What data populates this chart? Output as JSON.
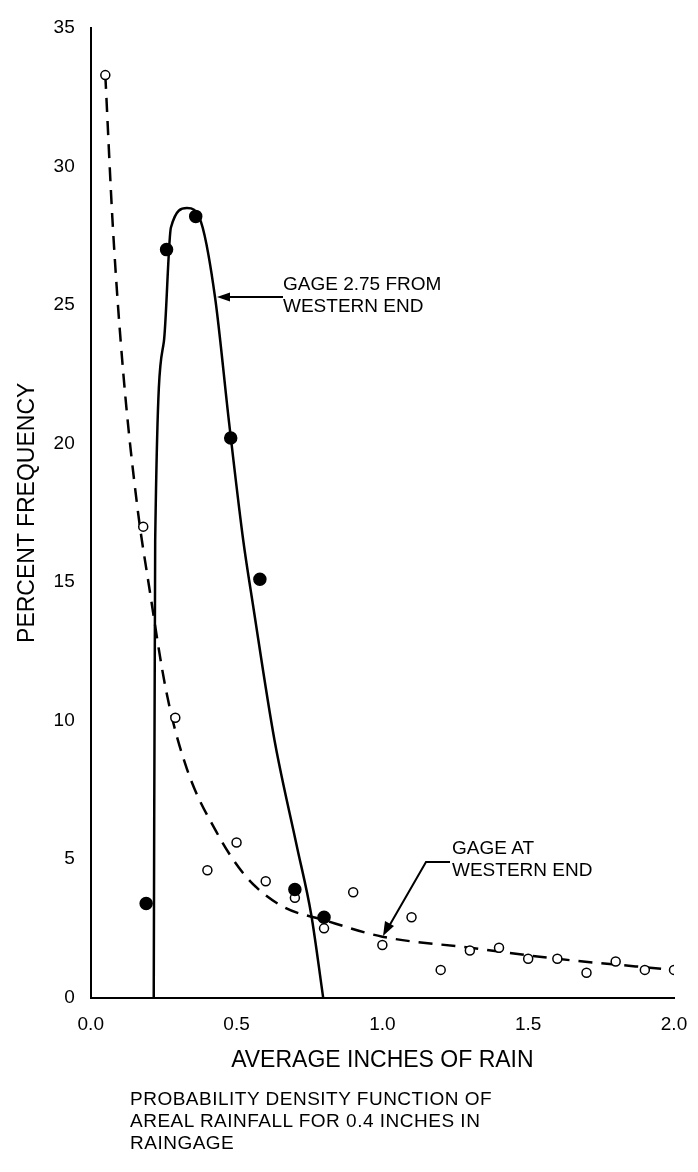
{
  "chart_data": {
    "type": "scatter",
    "xlabel": "AVERAGE INCHES OF RAIN",
    "ylabel": "PERCENT FREQUENCY",
    "xlim": [
      0,
      2
    ],
    "xticks": [
      {
        "value": 0,
        "label": "0.0"
      },
      0.5,
      {
        "value": 1,
        "label": "1.0"
      },
      1.5,
      {
        "value": 2,
        "label": "2.0"
      }
    ],
    "ylim": [
      0,
      35
    ],
    "yticks": [
      0,
      5,
      10,
      15,
      20,
      25,
      30,
      35
    ],
    "grid": false,
    "legend": false,
    "series": [
      {
        "type": "line",
        "color": "#000000",
        "marker": "none",
        "line_style": "solid",
        "x": [
          0.216,
          0.221,
          0.251,
          0.275,
          0.33,
          0.378,
          0.426,
          0.475,
          0.523,
          0.556,
          0.63,
          0.706,
          0.756,
          0.797
        ],
        "values": [
          0,
          16.5,
          23.7,
          27.8,
          28.5,
          28,
          25.3,
          20.7,
          16.5,
          14.2,
          9.3,
          5.5,
          3,
          0
        ]
      },
      {
        "type": "line",
        "color": "#000000",
        "marker": "none",
        "line_style": "dashed",
        "x": [
          0.05,
          0.076,
          0.112,
          0.16,
          0.2,
          0.26,
          0.33,
          0.43,
          0.53,
          0.656,
          0.8,
          1.0,
          1.3,
          1.6,
          2.0
        ],
        "values": [
          33.3,
          27.8,
          22.5,
          17.7,
          14.85,
          11,
          8.25,
          6,
          4.4,
          3.3,
          2.8,
          2.2,
          1.8,
          1.4,
          1
        ]
      },
      {
        "color": "#000000",
        "marker": "circle",
        "x": [
          0.19,
          0.26,
          0.36,
          0.48,
          0.58,
          0.7,
          0.8
        ],
        "values": [
          3.4,
          27,
          28.2,
          20.2,
          15.1,
          3.9,
          2.9
        ]
      },
      {
        "color": "#ffffff",
        "marker": "circle",
        "x": [
          0.05,
          0.18,
          0.29,
          0.4,
          0.5,
          0.6,
          0.7,
          0.8,
          0.9,
          1,
          1.1,
          1.2,
          1.3,
          1.4,
          1.5,
          1.6,
          1.7,
          1.8,
          1.9,
          2
        ],
        "values": [
          33.3,
          17,
          10.1,
          4.6,
          5.6,
          4.2,
          3.6,
          2.5,
          3.8,
          1.9,
          2.9,
          1,
          1.7,
          1.8,
          1.4,
          1.4,
          0.9,
          1.3,
          1,
          1
        ]
      }
    ],
    "annotations": [
      "GAGE 2.75 FROM WESTERN END",
      "GAGE AT WESTERN END",
      "PROBABILITY DENSITY FUNCTION OF AREAL RAINFALL FOR 0.4 INCHES IN RAINGAGE"
    ]
  }
}
